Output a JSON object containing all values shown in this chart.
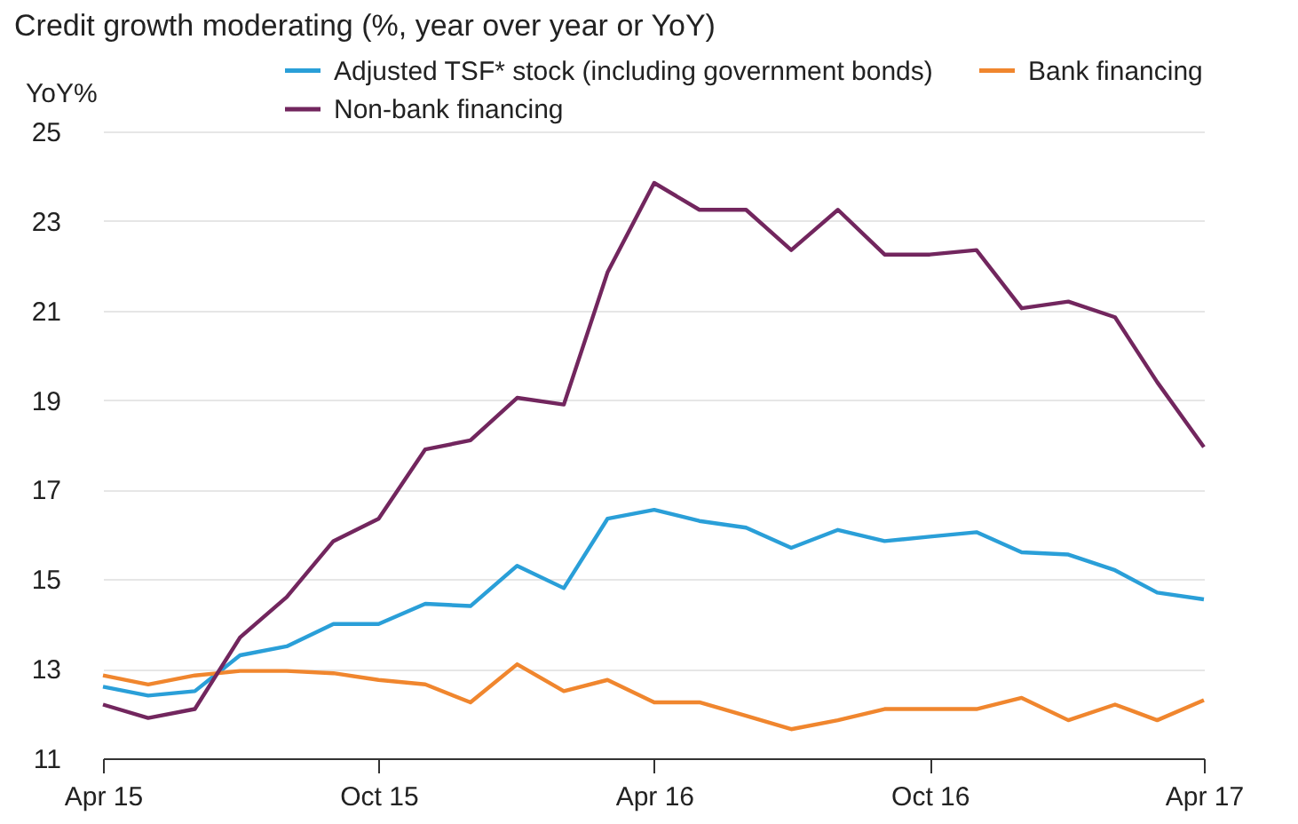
{
  "chart_data": {
    "type": "line",
    "title": "Credit growth moderating (%, year over year or YoY)",
    "ylabel": "YoY%",
    "x": [
      "2015-04",
      "2015-05",
      "2015-06",
      "2015-07",
      "2015-08",
      "2015-09",
      "2015-10",
      "2015-11",
      "2015-12",
      "2016-01",
      "2016-02",
      "2016-03",
      "2016-04",
      "2016-05",
      "2016-06",
      "2016-07",
      "2016-08",
      "2016-09",
      "2016-10",
      "2016-11",
      "2016-12",
      "2017-01",
      "2017-02",
      "2017-03",
      "2017-04"
    ],
    "series": [
      {
        "name": "Adjusted TSF* stock (including government bonds)",
        "color": "#2a9fd8",
        "values": [
          12.6,
          12.4,
          12.5,
          13.3,
          13.5,
          14.0,
          14.0,
          14.45,
          14.4,
          15.3,
          14.8,
          16.35,
          16.55,
          16.3,
          16.15,
          15.7,
          16.1,
          15.85,
          15.95,
          16.05,
          15.6,
          15.55,
          15.2,
          14.7,
          14.55
        ]
      },
      {
        "name": "Bank financing",
        "color": "#f0862e",
        "values": [
          12.85,
          12.65,
          12.85,
          12.95,
          12.95,
          12.9,
          12.75,
          12.65,
          12.25,
          13.1,
          12.5,
          12.75,
          12.25,
          12.25,
          11.95,
          11.65,
          11.85,
          12.1,
          12.1,
          12.1,
          12.35,
          11.85,
          12.2,
          11.85,
          12.3
        ]
      },
      {
        "name": "Non-bank financing",
        "color": "#72265e",
        "values": [
          12.2,
          11.9,
          12.1,
          13.7,
          14.6,
          15.85,
          16.35,
          17.9,
          18.1,
          19.05,
          18.9,
          21.85,
          23.85,
          23.25,
          23.25,
          22.35,
          23.25,
          22.25,
          22.25,
          22.35,
          21.05,
          21.2,
          20.85,
          19.4,
          17.95
        ]
      }
    ],
    "xlim": [
      "2015-04",
      "2017-04"
    ],
    "xticks": [
      {
        "value": "2015-04",
        "label": "Apr 15"
      },
      {
        "value": "2015-10",
        "label": "Oct 15"
      },
      {
        "value": "2016-04",
        "label": "Apr 16"
      },
      {
        "value": "2016-10",
        "label": "Oct 16"
      },
      {
        "value": "2017-04",
        "label": "Apr 17"
      }
    ],
    "ylim": [
      11,
      25
    ],
    "yticks": [
      11,
      13,
      15,
      17,
      19,
      21,
      23,
      25
    ],
    "grid": "y",
    "legend": "top right",
    "marker": "none",
    "line_style": "solid"
  }
}
